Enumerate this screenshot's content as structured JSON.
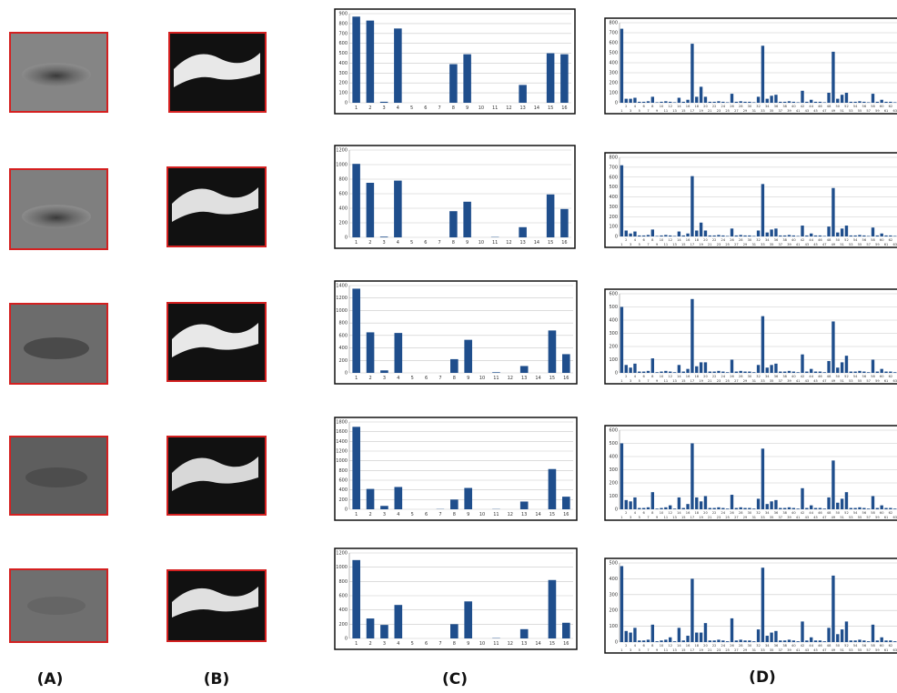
{
  "panel_labels": [
    "(A)",
    "(B)",
    "(C)",
    "(D)"
  ],
  "chart_data": [
    {
      "type": "bar",
      "categories": [
        1,
        2,
        3,
        4,
        5,
        6,
        7,
        8,
        9,
        10,
        11,
        12,
        13,
        14,
        15,
        16
      ],
      "values": [
        870,
        830,
        10,
        750,
        0,
        0,
        0,
        390,
        490,
        0,
        0,
        0,
        180,
        0,
        500,
        490
      ],
      "ylim": [
        0,
        900
      ],
      "yticks": [
        0,
        100,
        200,
        300,
        400,
        500,
        600,
        700,
        800,
        900
      ],
      "color": "#1f4e8c",
      "grid": true
    },
    {
      "type": "bar",
      "categories": [
        1,
        2,
        3,
        4,
        5,
        6,
        7,
        8,
        9,
        10,
        11,
        12,
        13,
        14,
        15,
        16
      ],
      "values": [
        1010,
        750,
        10,
        780,
        0,
        0,
        0,
        360,
        490,
        0,
        5,
        0,
        140,
        0,
        590,
        390
      ],
      "ylim": [
        0,
        1200
      ],
      "yticks": [
        0,
        200,
        400,
        600,
        800,
        1000,
        1200
      ],
      "color": "#1f4e8c",
      "grid": true
    },
    {
      "type": "bar",
      "categories": [
        1,
        2,
        3,
        4,
        5,
        6,
        7,
        8,
        9,
        10,
        11,
        12,
        13,
        14,
        15,
        16
      ],
      "values": [
        1350,
        650,
        40,
        640,
        0,
        0,
        0,
        220,
        530,
        0,
        10,
        0,
        110,
        0,
        680,
        300
      ],
      "ylim": [
        0,
        1400
      ],
      "yticks": [
        0,
        200,
        400,
        600,
        800,
        1000,
        1200,
        1400
      ],
      "color": "#1f4e8c",
      "grid": true
    },
    {
      "type": "bar",
      "categories": [
        1,
        2,
        3,
        4,
        5,
        6,
        7,
        8,
        9,
        10,
        11,
        12,
        13,
        14,
        15,
        16
      ],
      "values": [
        1700,
        420,
        70,
        460,
        0,
        0,
        5,
        200,
        440,
        0,
        5,
        0,
        160,
        0,
        830,
        260
      ],
      "ylim": [
        0,
        1800
      ],
      "yticks": [
        0,
        200,
        400,
        600,
        800,
        1000,
        1200,
        1400,
        1600,
        1800
      ],
      "color": "#1f4e8c",
      "grid": true
    },
    {
      "type": "bar",
      "categories": [
        1,
        2,
        3,
        4,
        5,
        6,
        7,
        8,
        9,
        10,
        11,
        12,
        13,
        14,
        15,
        16
      ],
      "values": [
        1100,
        280,
        190,
        470,
        0,
        0,
        0,
        200,
        520,
        0,
        5,
        0,
        130,
        0,
        820,
        220
      ],
      "ylim": [
        0,
        1200
      ],
      "yticks": [
        0,
        200,
        400,
        600,
        800,
        1000,
        1200
      ],
      "color": "#1f4e8c",
      "grid": true
    },
    {
      "type": "bar",
      "categories": [
        1,
        2,
        3,
        4,
        5,
        6,
        7,
        8,
        9,
        10,
        11,
        12,
        13,
        14,
        15,
        16,
        17,
        18,
        19,
        20,
        21,
        22,
        23,
        24,
        25,
        26,
        27,
        28,
        29,
        30,
        31,
        32,
        33,
        34,
        35,
        36,
        37,
        38,
        39,
        40,
        41,
        42,
        43,
        44,
        45,
        46,
        47,
        48,
        49,
        50,
        51,
        52,
        53,
        54,
        55,
        56,
        57,
        58,
        59,
        60,
        61,
        62,
        63,
        64
      ],
      "values": [
        740,
        40,
        40,
        50,
        10,
        10,
        15,
        60,
        5,
        10,
        15,
        10,
        5,
        50,
        10,
        30,
        590,
        60,
        160,
        60,
        10,
        10,
        15,
        10,
        5,
        90,
        10,
        15,
        10,
        10,
        5,
        60,
        570,
        40,
        70,
        80,
        10,
        10,
        15,
        10,
        5,
        120,
        10,
        30,
        10,
        10,
        5,
        100,
        510,
        40,
        80,
        100,
        10,
        10,
        15,
        10,
        5,
        90,
        10,
        30,
        10,
        10,
        5,
        80
      ],
      "ylim": [
        0,
        800
      ],
      "yticks": [
        0,
        100,
        200,
        300,
        400,
        500,
        600,
        700,
        800
      ],
      "color": "#1f4e8c",
      "grid": true
    },
    {
      "type": "bar",
      "categories": [
        1,
        2,
        3,
        4,
        5,
        6,
        7,
        8,
        9,
        10,
        11,
        12,
        13,
        14,
        15,
        16,
        17,
        18,
        19,
        20,
        21,
        22,
        23,
        24,
        25,
        26,
        27,
        28,
        29,
        30,
        31,
        32,
        33,
        34,
        35,
        36,
        37,
        38,
        39,
        40,
        41,
        42,
        43,
        44,
        45,
        46,
        47,
        48,
        49,
        50,
        51,
        52,
        53,
        54,
        55,
        56,
        57,
        58,
        59,
        60,
        61,
        62,
        63,
        64
      ],
      "values": [
        720,
        60,
        30,
        50,
        10,
        10,
        15,
        70,
        5,
        10,
        15,
        10,
        5,
        50,
        10,
        30,
        610,
        60,
        140,
        60,
        10,
        10,
        15,
        10,
        5,
        80,
        10,
        15,
        10,
        10,
        5,
        60,
        530,
        40,
        70,
        80,
        10,
        10,
        15,
        10,
        5,
        110,
        10,
        30,
        10,
        10,
        5,
        100,
        490,
        40,
        80,
        110,
        10,
        10,
        15,
        10,
        5,
        90,
        10,
        30,
        10,
        10,
        5,
        80
      ],
      "ylim": [
        0,
        800
      ],
      "yticks": [
        0,
        100,
        200,
        300,
        400,
        500,
        600,
        700,
        800
      ],
      "color": "#1f4e8c",
      "grid": true
    },
    {
      "type": "bar",
      "categories": [
        1,
        2,
        3,
        4,
        5,
        6,
        7,
        8,
        9,
        10,
        11,
        12,
        13,
        14,
        15,
        16,
        17,
        18,
        19,
        20,
        21,
        22,
        23,
        24,
        25,
        26,
        27,
        28,
        29,
        30,
        31,
        32,
        33,
        34,
        35,
        36,
        37,
        38,
        39,
        40,
        41,
        42,
        43,
        44,
        45,
        46,
        47,
        48,
        49,
        50,
        51,
        52,
        53,
        54,
        55,
        56,
        57,
        58,
        59,
        60,
        61,
        62,
        63,
        64
      ],
      "values": [
        500,
        60,
        40,
        70,
        10,
        10,
        15,
        110,
        5,
        10,
        15,
        10,
        5,
        60,
        10,
        30,
        560,
        50,
        80,
        80,
        10,
        10,
        15,
        10,
        5,
        100,
        10,
        15,
        10,
        10,
        5,
        60,
        430,
        40,
        60,
        70,
        10,
        10,
        15,
        10,
        5,
        140,
        10,
        30,
        10,
        10,
        5,
        90,
        390,
        40,
        80,
        130,
        10,
        10,
        15,
        10,
        5,
        100,
        10,
        30,
        10,
        10,
        5,
        80
      ],
      "ylim": [
        0,
        600
      ],
      "yticks": [
        0,
        100,
        200,
        300,
        400,
        500,
        600
      ],
      "color": "#1f4e8c",
      "grid": true
    },
    {
      "type": "bar",
      "categories": [
        1,
        2,
        3,
        4,
        5,
        6,
        7,
        8,
        9,
        10,
        11,
        12,
        13,
        14,
        15,
        16,
        17,
        18,
        19,
        20,
        21,
        22,
        23,
        24,
        25,
        26,
        27,
        28,
        29,
        30,
        31,
        32,
        33,
        34,
        35,
        36,
        37,
        38,
        39,
        40,
        41,
        42,
        43,
        44,
        45,
        46,
        47,
        48,
        49,
        50,
        51,
        52,
        53,
        54,
        55,
        56,
        57,
        58,
        59,
        60,
        61,
        62,
        63,
        64
      ],
      "values": [
        500,
        70,
        60,
        90,
        10,
        10,
        15,
        130,
        5,
        10,
        15,
        30,
        5,
        90,
        10,
        40,
        500,
        90,
        60,
        100,
        10,
        10,
        15,
        10,
        5,
        110,
        10,
        15,
        10,
        10,
        5,
        80,
        460,
        40,
        60,
        70,
        10,
        10,
        15,
        10,
        5,
        160,
        10,
        30,
        10,
        10,
        5,
        90,
        370,
        50,
        80,
        130,
        10,
        10,
        15,
        10,
        5,
        100,
        10,
        30,
        10,
        10,
        5,
        100
      ],
      "ylim": [
        0,
        600
      ],
      "yticks": [
        0,
        100,
        200,
        300,
        400,
        500,
        600
      ],
      "color": "#1f4e8c",
      "grid": true
    },
    {
      "type": "bar",
      "categories": [
        1,
        2,
        3,
        4,
        5,
        6,
        7,
        8,
        9,
        10,
        11,
        12,
        13,
        14,
        15,
        16,
        17,
        18,
        19,
        20,
        21,
        22,
        23,
        24,
        25,
        26,
        27,
        28,
        29,
        30,
        31,
        32,
        33,
        34,
        35,
        36,
        37,
        38,
        39,
        40,
        41,
        42,
        43,
        44,
        45,
        46,
        47,
        48,
        49,
        50,
        51,
        52,
        53,
        54,
        55,
        56,
        57,
        58,
        59,
        60,
        61,
        62,
        63,
        64
      ],
      "values": [
        480,
        70,
        60,
        90,
        10,
        10,
        15,
        110,
        5,
        10,
        15,
        30,
        5,
        90,
        10,
        40,
        400,
        60,
        60,
        120,
        10,
        10,
        15,
        10,
        5,
        150,
        10,
        15,
        10,
        10,
        5,
        80,
        470,
        40,
        60,
        70,
        10,
        10,
        15,
        10,
        5,
        130,
        10,
        30,
        10,
        10,
        5,
        90,
        420,
        50,
        80,
        130,
        10,
        10,
        15,
        10,
        5,
        110,
        10,
        30,
        10,
        10,
        5,
        100
      ],
      "ylim": [
        0,
        500
      ],
      "yticks": [
        0,
        100,
        200,
        300,
        400,
        500
      ],
      "color": "#1f4e8c",
      "grid": true
    }
  ]
}
